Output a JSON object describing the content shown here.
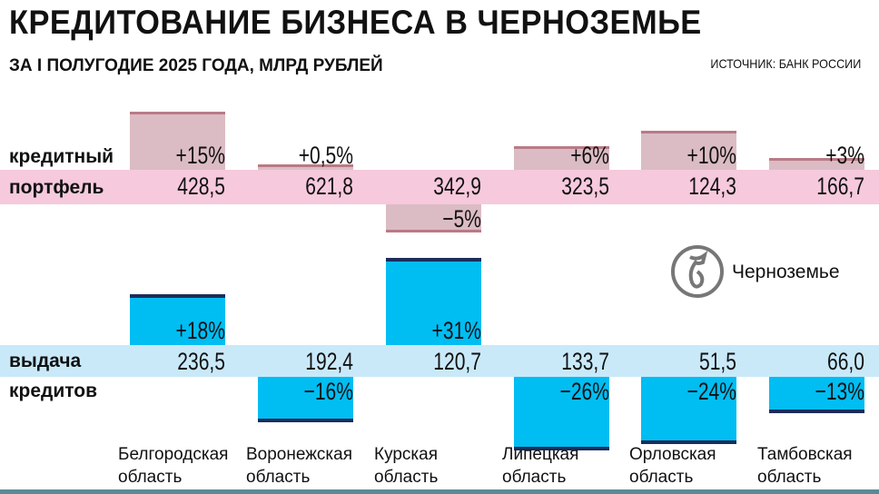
{
  "chart_data": {
    "type": "bar",
    "title": "КРЕДИТОВАНИЕ БИЗНЕСА В ЧЕРНОЗЕМЬЕ",
    "subtitle": "ЗА I ПОЛУГОДИЕ 2025 ГОДА, МЛРД РУБЛЕЙ",
    "source": "ИСТОЧНИК: БАНК РОССИИ",
    "categories": [
      [
        "Белгородская",
        "область"
      ],
      [
        "Воронежская",
        "область"
      ],
      [
        "Курская",
        "область"
      ],
      [
        "Липецкая",
        "область"
      ],
      [
        "Орловская",
        "область"
      ],
      [
        "Тамбовская",
        "область"
      ]
    ],
    "series": [
      {
        "name": [
          "кредитный",
          "портфель"
        ],
        "values": [
          "428,5",
          "621,8",
          "342,9",
          "323,5",
          "124,3",
          "166,7"
        ],
        "change": [
          15,
          0.5,
          -5,
          6,
          10,
          3
        ],
        "change_labels": [
          "+15%",
          "+0,5%",
          "−5%",
          "+6%",
          "+10%",
          "+3%"
        ]
      },
      {
        "name": [
          "выдача",
          "кредитов"
        ],
        "values": [
          "236,5",
          "192,4",
          "120,7",
          "133,7",
          "51,5",
          "66,0"
        ],
        "change": [
          18,
          -16,
          31,
          -26,
          -24,
          -13
        ],
        "change_labels": [
          "+18%",
          "−16%",
          "+31%",
          "−26%",
          "−24%",
          "−13%"
        ]
      }
    ]
  },
  "logo_text": "Черноземье",
  "colors": {
    "pink_band": "#f6c9dc",
    "pink_bar": "#dbbcc4",
    "pink_line": "#b97a86",
    "blue_band": "#c9e9f9",
    "blue_bar": "#00bdf2",
    "blue_line": "#1b2d5a"
  }
}
